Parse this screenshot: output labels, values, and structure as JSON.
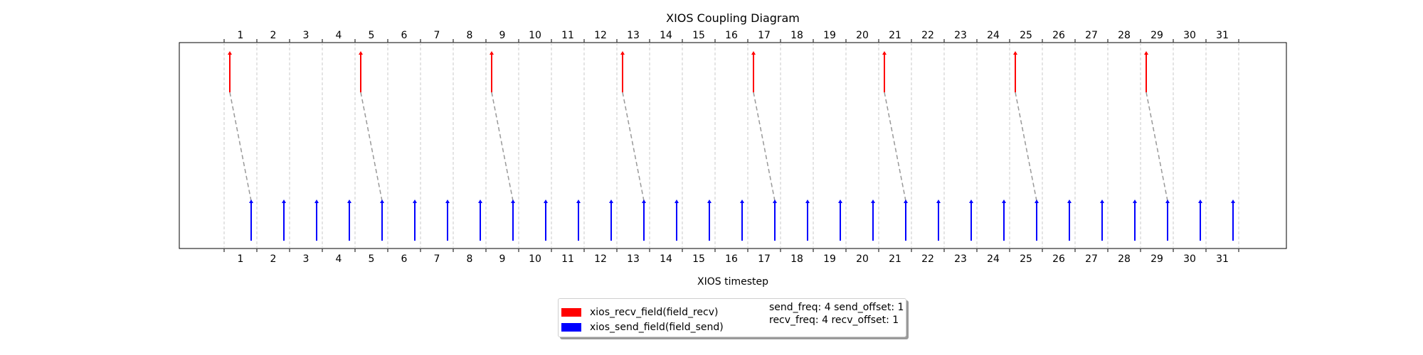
{
  "chart_data": {
    "type": "timeline",
    "title": "XIOS Coupling Diagram",
    "xlabel": "XIOS timestep",
    "ylabel": "",
    "x_ticks": [
      1,
      2,
      3,
      4,
      5,
      6,
      7,
      8,
      9,
      10,
      11,
      12,
      13,
      14,
      15,
      16,
      17,
      18,
      19,
      20,
      21,
      22,
      23,
      24,
      25,
      26,
      27,
      28,
      29,
      30,
      31
    ],
    "xlim": [
      0,
      32
    ],
    "grid": "vertical dashed lines between timesteps",
    "series": [
      {
        "name": "xios_recv_field(field_recv)",
        "color": "#ff0000",
        "row": "top",
        "timesteps": [
          1,
          5,
          9,
          13,
          17,
          21,
          25,
          29
        ]
      },
      {
        "name": "xios_send_field(field_send)",
        "color": "#0000ff",
        "row": "bottom",
        "timesteps": [
          1,
          2,
          3,
          4,
          5,
          6,
          7,
          8,
          9,
          10,
          11,
          12,
          13,
          14,
          15,
          16,
          17,
          18,
          19,
          20,
          21,
          22,
          23,
          24,
          25,
          26,
          27,
          28,
          29,
          30,
          31
        ]
      }
    ],
    "couplings": [
      [
        1,
        1
      ],
      [
        5,
        5
      ],
      [
        9,
        9
      ],
      [
        13,
        13
      ],
      [
        17,
        17
      ],
      [
        21,
        21
      ],
      [
        25,
        25
      ],
      [
        29,
        29
      ]
    ],
    "coupling_color": "#999999",
    "legend": {
      "placement": "bottom-center",
      "note_lines": [
        "send_freq: 4 send_offset: 1",
        "recv_freq: 4 recv_offset: 1"
      ]
    }
  }
}
